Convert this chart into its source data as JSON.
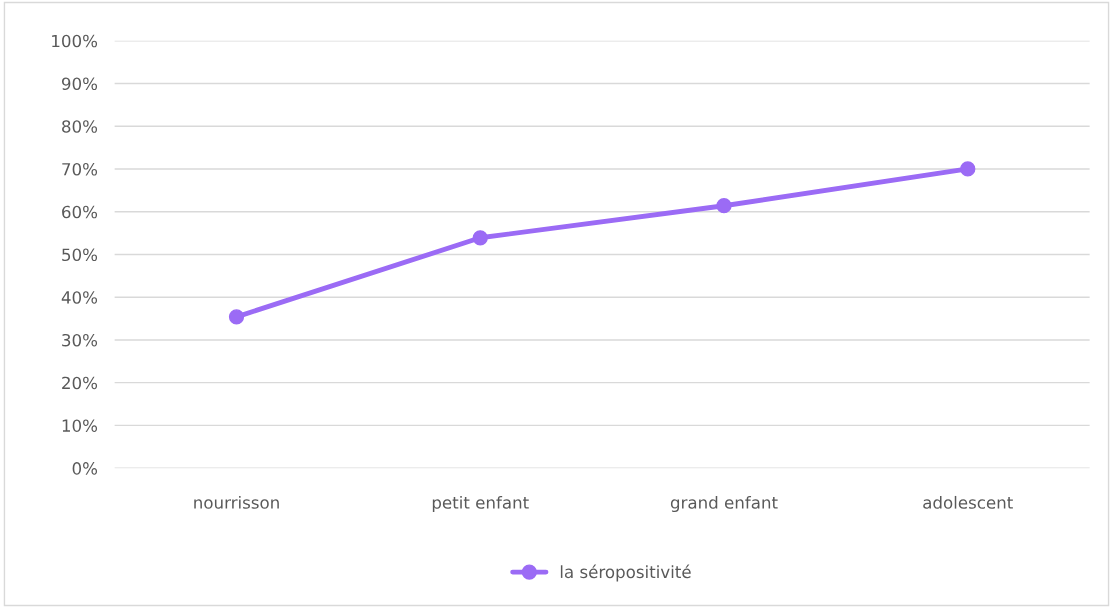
{
  "chart_data": {
    "type": "line",
    "categories": [
      "nourrisson",
      "petit enfant",
      "grand enfant",
      "adolescent"
    ],
    "series": [
      {
        "name": "la séropositivité",
        "color": "#9b6bf5",
        "values": [
          35.4,
          53.9,
          61.4,
          70.0
        ]
      }
    ],
    "ylim": [
      0,
      100
    ],
    "yticks": [
      {
        "value": 0,
        "label": "0%"
      },
      {
        "value": 10,
        "label": "10%"
      },
      {
        "value": 20,
        "label": "20%"
      },
      {
        "value": 30,
        "label": "30%"
      },
      {
        "value": 40,
        "label": "40%"
      },
      {
        "value": 50,
        "label": "50%"
      },
      {
        "value": 60,
        "label": "60%"
      },
      {
        "value": 70,
        "label": "70%"
      },
      {
        "value": 80,
        "label": "80%"
      },
      {
        "value": 90,
        "label": "90%"
      },
      {
        "value": 100,
        "label": "100%"
      }
    ],
    "grid": "y",
    "legend": "bottom",
    "marker": "circle",
    "line_style": "solid"
  }
}
